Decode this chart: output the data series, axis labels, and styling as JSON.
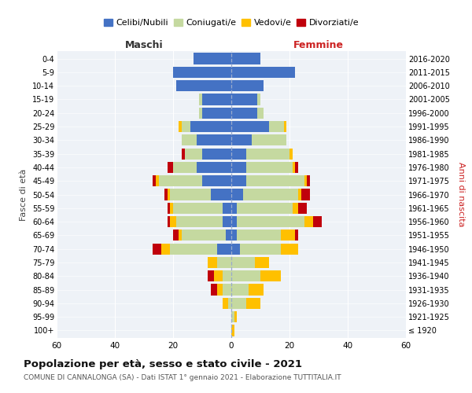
{
  "age_groups": [
    "100+",
    "95-99",
    "90-94",
    "85-89",
    "80-84",
    "75-79",
    "70-74",
    "65-69",
    "60-64",
    "55-59",
    "50-54",
    "45-49",
    "40-44",
    "35-39",
    "30-34",
    "25-29",
    "20-24",
    "15-19",
    "10-14",
    "5-9",
    "0-4"
  ],
  "birth_years": [
    "≤ 1920",
    "1921-1925",
    "1926-1930",
    "1931-1935",
    "1936-1940",
    "1941-1945",
    "1946-1950",
    "1951-1955",
    "1956-1960",
    "1961-1965",
    "1966-1970",
    "1971-1975",
    "1976-1980",
    "1981-1985",
    "1986-1990",
    "1991-1995",
    "1996-2000",
    "2001-2005",
    "2006-2010",
    "2011-2015",
    "2016-2020"
  ],
  "maschi": {
    "celibi": [
      0,
      0,
      0,
      0,
      0,
      0,
      5,
      2,
      3,
      3,
      7,
      10,
      12,
      10,
      12,
      14,
      10,
      10,
      19,
      20,
      13
    ],
    "coniugati": [
      0,
      0,
      1,
      3,
      3,
      5,
      16,
      15,
      16,
      17,
      14,
      15,
      8,
      6,
      5,
      3,
      1,
      1,
      0,
      0,
      0
    ],
    "vedovi": [
      0,
      0,
      2,
      2,
      3,
      3,
      3,
      1,
      2,
      1,
      1,
      1,
      0,
      0,
      0,
      1,
      0,
      0,
      0,
      0,
      0
    ],
    "divorziati": [
      0,
      0,
      0,
      2,
      2,
      0,
      3,
      2,
      1,
      1,
      1,
      1,
      2,
      1,
      0,
      0,
      0,
      0,
      0,
      0,
      0
    ]
  },
  "femmine": {
    "celibi": [
      0,
      0,
      0,
      0,
      0,
      0,
      3,
      2,
      2,
      2,
      4,
      5,
      5,
      5,
      7,
      13,
      9,
      9,
      11,
      22,
      10
    ],
    "coniugati": [
      0,
      1,
      5,
      6,
      10,
      8,
      14,
      15,
      23,
      19,
      19,
      20,
      16,
      15,
      12,
      5,
      2,
      1,
      0,
      0,
      0
    ],
    "vedovi": [
      1,
      1,
      5,
      5,
      7,
      5,
      6,
      5,
      3,
      2,
      1,
      1,
      1,
      1,
      0,
      1,
      0,
      0,
      0,
      0,
      0
    ],
    "divorziati": [
      0,
      0,
      0,
      0,
      0,
      0,
      0,
      1,
      3,
      3,
      3,
      1,
      1,
      0,
      0,
      0,
      0,
      0,
      0,
      0,
      0
    ]
  },
  "colors": {
    "celibi": "#4472c4",
    "coniugati": "#c5d9a0",
    "vedovi": "#ffc000",
    "divorziati": "#c0000c"
  },
  "legend_labels": [
    "Celibi/Nubili",
    "Coniugati/e",
    "Vedovi/e",
    "Divorziati/e"
  ],
  "title": "Popolazione per età, sesso e stato civile - 2021",
  "subtitle": "COMUNE DI CANNALONGA (SA) - Dati ISTAT 1° gennaio 2021 - Elaborazione TUTTITALIA.IT",
  "xlabel_left": "Maschi",
  "xlabel_right": "Femmine",
  "ylabel_left": "Fasce di età",
  "ylabel_right": "Anni di nascita",
  "xlim": 60,
  "background_color": "#ffffff",
  "grid_color": "#cccccc",
  "ax_bg_color": "#eef2f7"
}
